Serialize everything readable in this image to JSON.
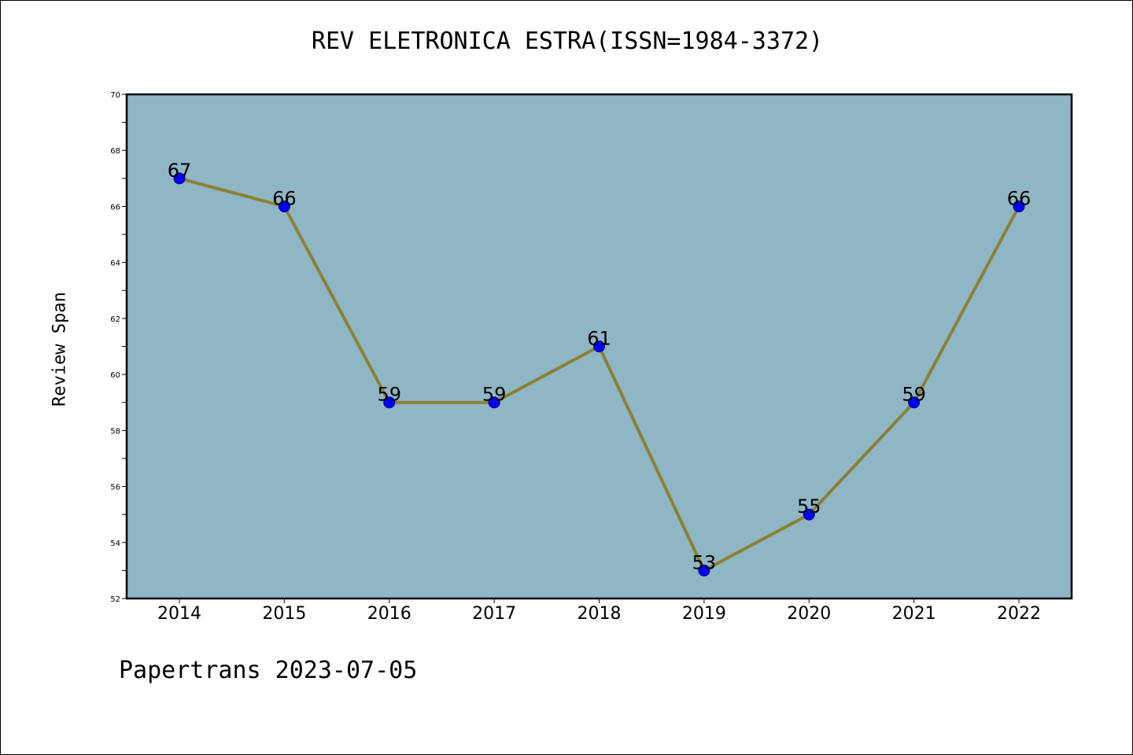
{
  "page": {
    "footer": "Papertrans 2023-07-05"
  },
  "colors": {
    "plot_background": "#8fb6c4",
    "line": "#8c8034",
    "marker": "#0000ff",
    "marker_edge": "#00008b",
    "axis": "#000000"
  },
  "chart_data": {
    "type": "line",
    "title": "REV ELETRONICA ESTRA(ISSN=1984-3372)",
    "xlabel": "",
    "ylabel": "Review Span",
    "categories": [
      "2014",
      "2015",
      "2016",
      "2017",
      "2018",
      "2019",
      "2020",
      "2021",
      "2022"
    ],
    "series": [
      {
        "values": [
          67,
          66,
          59,
          59,
          61,
          53,
          55,
          59,
          66
        ]
      }
    ],
    "ylim": [
      52,
      70
    ],
    "yticks": [
      52,
      54,
      56,
      58,
      60,
      62,
      64,
      66,
      68,
      70
    ],
    "data_labels": true,
    "grid": false,
    "legend": "none"
  }
}
